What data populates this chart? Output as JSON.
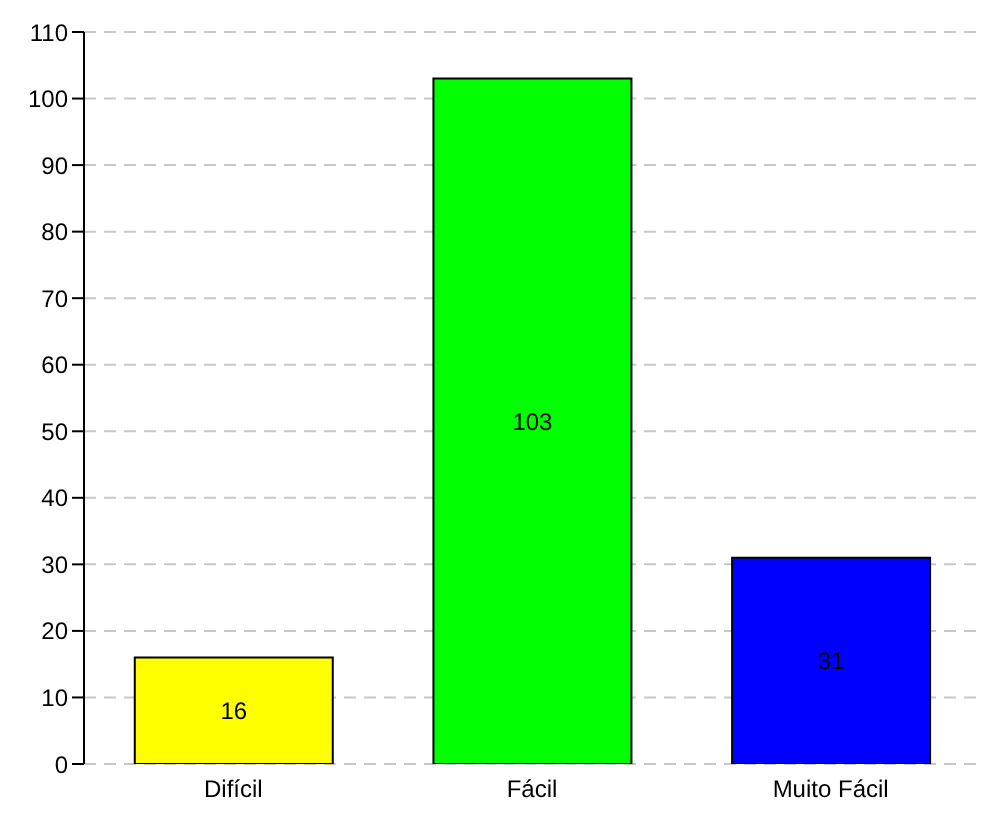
{
  "chart_data": {
    "type": "bar",
    "categories": [
      "Difícil",
      "Fácil",
      "Muito Fácil"
    ],
    "values": [
      16,
      103,
      31
    ],
    "colors": [
      "#ffff00",
      "#00ff00",
      "#0000ff"
    ],
    "ylim": [
      0,
      110
    ],
    "yticks": [
      0,
      10,
      20,
      30,
      40,
      50,
      60,
      70,
      80,
      90,
      100,
      110
    ],
    "grid": "y",
    "data_labels": true
  }
}
